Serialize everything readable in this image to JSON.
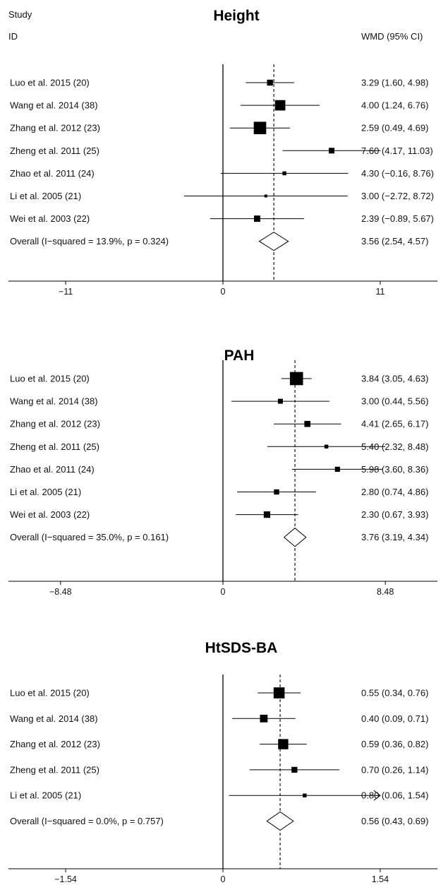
{
  "header": {
    "study_label": "Study",
    "id_label": "ID",
    "effect_label": "WMD (95% CI)"
  },
  "chart_data": [
    {
      "type": "forest",
      "title": "Height",
      "xlim": [
        -15,
        15
      ],
      "ticks": [
        -11,
        0,
        11
      ],
      "tick_labels": [
        "−11",
        "0",
        "11"
      ],
      "pooled": 3.56,
      "studies": [
        {
          "label": "Luo et al. 2015 (20)",
          "est": 3.29,
          "lo": 1.6,
          "hi": 4.98,
          "ci_text": "3.29 (1.60, 4.98)"
        },
        {
          "label": "Wang et al. 2014 (38)",
          "est": 4.0,
          "lo": 1.24,
          "hi": 6.76,
          "ci_text": "4.00 (1.24, 6.76)"
        },
        {
          "label": "Zhang et al. 2012 (23)",
          "est": 2.59,
          "lo": 0.49,
          "hi": 4.69,
          "ci_text": "2.59 (0.49, 4.69)"
        },
        {
          "label": "Zheng et al. 2011 (25)",
          "est": 7.6,
          "lo": 4.17,
          "hi": 11.03,
          "ci_text": "7.60 (4.17, 11.03)"
        },
        {
          "label": "Zhao et al. 2011 (24)",
          "est": 4.3,
          "lo": -0.16,
          "hi": 8.76,
          "ci_text": "4.30 (−0.16, 8.76)"
        },
        {
          "label": "Li et al. 2005 (21)",
          "est": 3.0,
          "lo": -2.72,
          "hi": 8.72,
          "ci_text": "3.00 (−2.72, 8.72)"
        },
        {
          "label": "Wei et al. 2003 (22)",
          "est": 2.39,
          "lo": -0.89,
          "hi": 5.67,
          "ci_text": "2.39 (−0.89, 5.67)"
        }
      ],
      "overall": {
        "label": "Overall  (I−squared = 13.9%, p = 0.324)",
        "est": 3.56,
        "lo": 2.54,
        "hi": 4.57,
        "ci_text": "3.56 (2.54, 4.57)"
      }
    },
    {
      "type": "forest",
      "title": "PAH",
      "xlim": [
        -11.2,
        11.2
      ],
      "ticks": [
        -8.48,
        0,
        8.48
      ],
      "tick_labels": [
        "−8.48",
        "0",
        "8.48"
      ],
      "pooled": 3.76,
      "studies": [
        {
          "label": "Luo et al. 2015 (20)",
          "est": 3.84,
          "lo": 3.05,
          "hi": 4.63,
          "ci_text": "3.84 (3.05, 4.63)"
        },
        {
          "label": "Wang et al. 2014 (38)",
          "est": 3.0,
          "lo": 0.44,
          "hi": 5.56,
          "ci_text": "3.00 (0.44, 5.56)"
        },
        {
          "label": "Zhang et al. 2012 (23)",
          "est": 4.41,
          "lo": 2.65,
          "hi": 6.17,
          "ci_text": "4.41 (2.65, 6.17)"
        },
        {
          "label": "Zheng et al. 2011 (25)",
          "est": 5.4,
          "lo": 2.32,
          "hi": 8.48,
          "ci_text": "5.40 (2.32, 8.48)"
        },
        {
          "label": "Zhao et al. 2011 (24)",
          "est": 5.98,
          "lo": 3.6,
          "hi": 8.36,
          "ci_text": "5.98 (3.60, 8.36)"
        },
        {
          "label": "Li et al. 2005 (21)",
          "est": 2.8,
          "lo": 0.74,
          "hi": 4.86,
          "ci_text": "2.80 (0.74, 4.86)"
        },
        {
          "label": "Wei et al. 2003 (22)",
          "est": 2.3,
          "lo": 0.67,
          "hi": 3.93,
          "ci_text": "2.30 (0.67, 3.93)"
        }
      ],
      "overall": {
        "label": "Overall  (I−squared = 35.0%, p = 0.161)",
        "est": 3.76,
        "lo": 3.19,
        "hi": 4.34,
        "ci_text": "3.76 (3.19, 4.34)"
      }
    },
    {
      "type": "forest",
      "title": "HtSDS-BA",
      "xlim": [
        -2.1,
        2.1
      ],
      "ticks": [
        -1.54,
        0,
        1.54
      ],
      "tick_labels": [
        "−1.54",
        "0",
        "1.54"
      ],
      "pooled": 0.56,
      "studies": [
        {
          "label": "Luo et al. 2015 (20)",
          "est": 0.55,
          "lo": 0.34,
          "hi": 0.76,
          "ci_text": "0.55 (0.34, 0.76)"
        },
        {
          "label": "Wang et al. 2014 (38)",
          "est": 0.4,
          "lo": 0.09,
          "hi": 0.71,
          "ci_text": "0.40 (0.09, 0.71)"
        },
        {
          "label": "Zhang et al. 2012 (23)",
          "est": 0.59,
          "lo": 0.36,
          "hi": 0.82,
          "ci_text": "0.59 (0.36, 0.82)"
        },
        {
          "label": "Zheng et al. 2011 (25)",
          "est": 0.7,
          "lo": 0.26,
          "hi": 1.14,
          "ci_text": "0.70 (0.26, 1.14)"
        },
        {
          "label": "Li et al. 2005 (21)",
          "est": 0.8,
          "lo": 0.06,
          "hi": 1.54,
          "ci_text": "0.80 (0.06, 1.54)",
          "arrow_right": true
        }
      ],
      "overall": {
        "label": "Overall  (I−squared = 0.0%, p = 0.757)",
        "est": 0.56,
        "lo": 0.43,
        "hi": 0.69,
        "ci_text": "0.56 (0.43, 0.69)"
      }
    }
  ]
}
